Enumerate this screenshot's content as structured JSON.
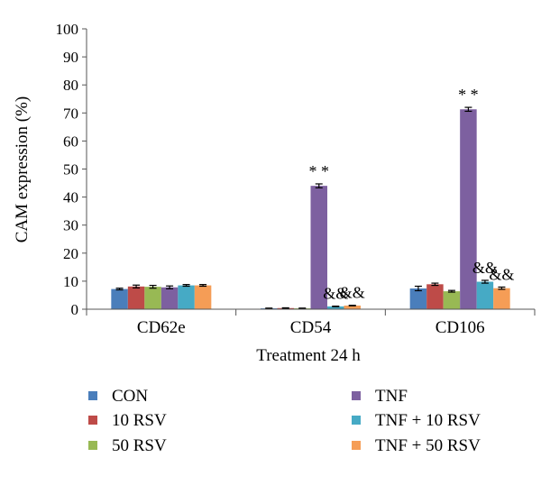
{
  "chart_data": {
    "type": "bar",
    "title": "",
    "xlabel": "Treatment 24 h",
    "ylabel": "CAM expression (%)",
    "ylim": [
      0,
      100
    ],
    "yticks": [
      "0",
      "10",
      "20",
      "30",
      "40",
      "50",
      "60",
      "70",
      "80",
      "90",
      "100"
    ],
    "grid": false,
    "legend_position": "bottom",
    "categories": [
      "CD62e",
      "CD54",
      "CD106"
    ],
    "series": [
      {
        "name": "CON",
        "color": "#4a7ebb",
        "values": [
          7.2,
          0.3,
          7.4
        ],
        "errors": [
          0.3,
          0.1,
          0.8
        ]
      },
      {
        "name": "10 RSV",
        "color": "#be4b48",
        "values": [
          8.1,
          0.4,
          8.9
        ],
        "errors": [
          0.5,
          0.1,
          0.4
        ]
      },
      {
        "name": "50 RSV",
        "color": "#98b954",
        "values": [
          8.0,
          0.3,
          6.4
        ],
        "errors": [
          0.5,
          0.1,
          0.3
        ]
      },
      {
        "name": "TNF",
        "color": "#7d60a0",
        "values": [
          7.8,
          44.0,
          71.3
        ],
        "errors": [
          0.5,
          0.7,
          0.7
        ]
      },
      {
        "name": "TNF + 10 RSV",
        "color": "#46aac5",
        "values": [
          8.5,
          1.0,
          9.8
        ],
        "errors": [
          0.3,
          0.1,
          0.5
        ]
      },
      {
        "name": "TNF + 50 RSV",
        "color": "#f59d56",
        "values": [
          8.5,
          1.3,
          7.5
        ],
        "errors": [
          0.3,
          0.1,
          0.4
        ]
      }
    ],
    "annotations": [
      {
        "text": "* *",
        "category": 1,
        "series": 3
      },
      {
        "text": "&&",
        "category": 1,
        "series": 4
      },
      {
        "text": "&&",
        "category": 1,
        "series": 5
      },
      {
        "text": "* *",
        "category": 2,
        "series": 3
      },
      {
        "text": "&&",
        "category": 2,
        "series": 4
      },
      {
        "text": "&&",
        "category": 2,
        "series": 5
      }
    ]
  }
}
